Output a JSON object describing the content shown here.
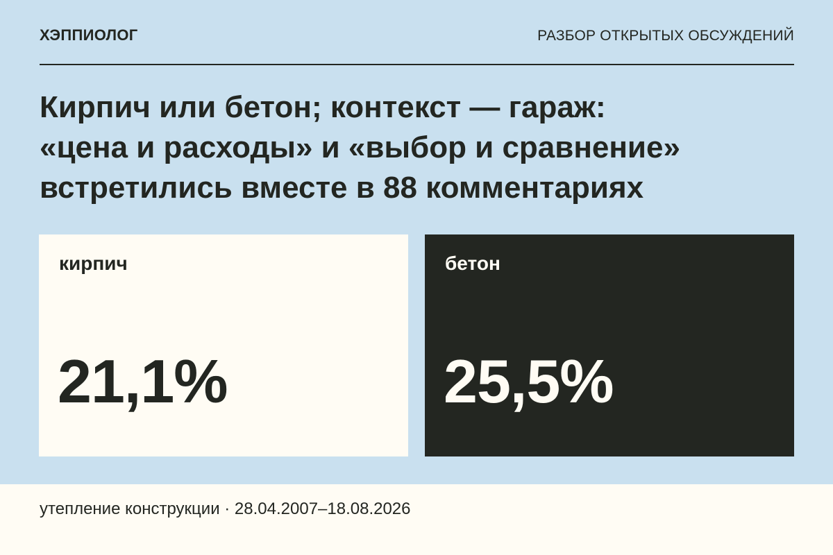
{
  "header": {
    "brand": "ХЭППИОЛОГ",
    "section": "РАЗБОР ОТКРЫТЫХ ОБСУЖДЕНИЙ"
  },
  "headline": {
    "lines": [
      "Кирпич или бетон; контекст — гараж:",
      "«цена и расходы» и «выбор и сравнение»",
      "встретились вместе в 88 комментариях"
    ]
  },
  "cards": [
    {
      "label": "кирпич",
      "value": "21,1%",
      "share": 21.1
    },
    {
      "label": "бетон",
      "value": "25,5%",
      "share": 25.5
    }
  ],
  "footer": {
    "text": "утепление конструкции · 28.04.2007–18.08.2026"
  },
  "colors": {
    "background": "#c9e0ef",
    "light_card": "#fffcf4",
    "dark_card": "#232621",
    "text_dark": "#232621",
    "text_light": "#fffcf4"
  }
}
